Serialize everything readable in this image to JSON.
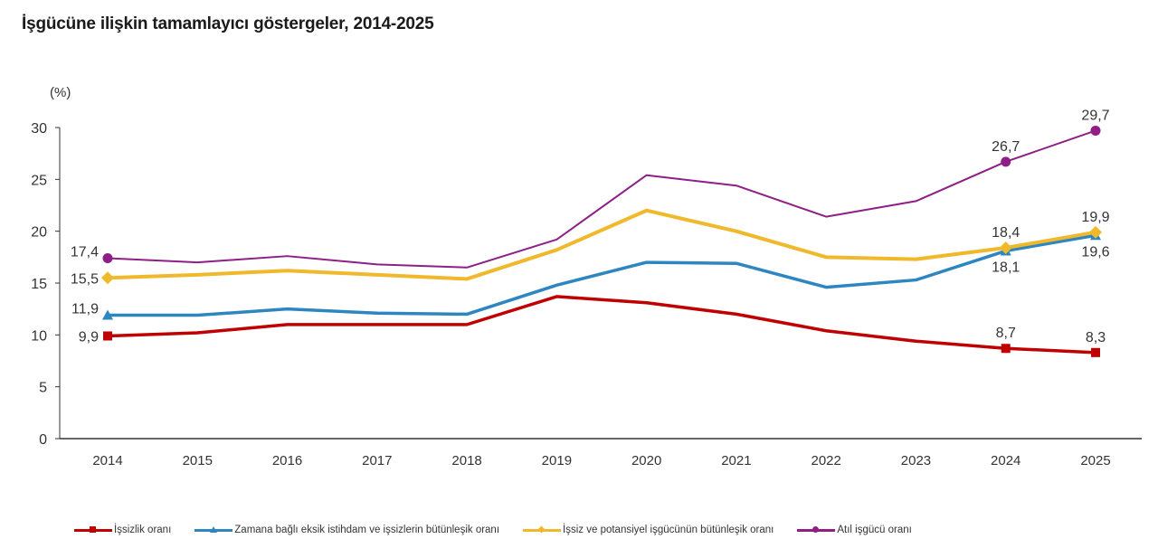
{
  "title": "İşgücüne ilişkin tamamlayıcı göstergeler, 2014-2025",
  "chart_data": {
    "type": "line",
    "title": "İşgücüne ilişkin tamamlayıcı göstergeler, 2014-2025",
    "xlabel": "",
    "ylabel": "(%)",
    "ylim": [
      0,
      30
    ],
    "yticks": [
      0,
      5,
      10,
      15,
      20,
      25,
      30
    ],
    "ytick_labels": [
      "0",
      "5",
      "10",
      "15",
      "20",
      "25",
      "30"
    ],
    "grid": false,
    "legend_position": "bottom",
    "categories": [
      "2014",
      "2015",
      "2016",
      "2017",
      "2018",
      "2019",
      "2020",
      "2021",
      "2022",
      "2023",
      "2024",
      "2025"
    ],
    "series": [
      {
        "name": "İşsizlik oranı",
        "color": "#c00000",
        "marker": "square",
        "values": [
          9.9,
          10.2,
          11.0,
          11.0,
          11.0,
          13.7,
          13.1,
          12.0,
          10.4,
          9.4,
          8.7,
          8.3
        ],
        "labels": [
          {
            "index": 0,
            "text": "9,9",
            "pos": "left"
          },
          {
            "index": 10,
            "text": "8,7",
            "pos": "above"
          },
          {
            "index": 11,
            "text": "8,3",
            "pos": "above"
          }
        ]
      },
      {
        "name": "Zamana bağlı eksik istihdam ve işsizlerin bütünleşik oranı",
        "color": "#2e86c1",
        "marker": "triangle",
        "values": [
          11.9,
          11.9,
          12.5,
          12.1,
          12.0,
          14.8,
          17.0,
          16.9,
          14.6,
          15.3,
          18.1,
          19.6
        ],
        "labels": [
          {
            "index": 0,
            "text": "11,9",
            "pos": "left-above"
          },
          {
            "index": 10,
            "text": "18,1",
            "pos": "below"
          },
          {
            "index": 11,
            "text": "19,6",
            "pos": "below"
          }
        ]
      },
      {
        "name": "İşsiz ve potansiyel işgücünün bütünleşik oranı",
        "color": "#f0b92c",
        "marker": "diamond",
        "values": [
          15.5,
          15.8,
          16.2,
          15.8,
          15.4,
          18.2,
          22.0,
          20.0,
          17.5,
          17.3,
          18.4,
          19.9
        ],
        "labels": [
          {
            "index": 0,
            "text": "15,5",
            "pos": "left"
          },
          {
            "index": 10,
            "text": "18,4",
            "pos": "above"
          },
          {
            "index": 11,
            "text": "19,9",
            "pos": "above"
          }
        ]
      },
      {
        "name": "Atıl işgücü oranı",
        "color": "#8e1f86",
        "marker": "circle",
        "values": [
          17.4,
          17.0,
          17.6,
          16.8,
          16.5,
          19.2,
          25.4,
          24.4,
          21.4,
          22.9,
          26.7,
          29.7
        ],
        "labels": [
          {
            "index": 0,
            "text": "17,4",
            "pos": "left-above"
          },
          {
            "index": 10,
            "text": "26,7",
            "pos": "above"
          },
          {
            "index": 11,
            "text": "29,7",
            "pos": "above"
          }
        ]
      }
    ]
  }
}
